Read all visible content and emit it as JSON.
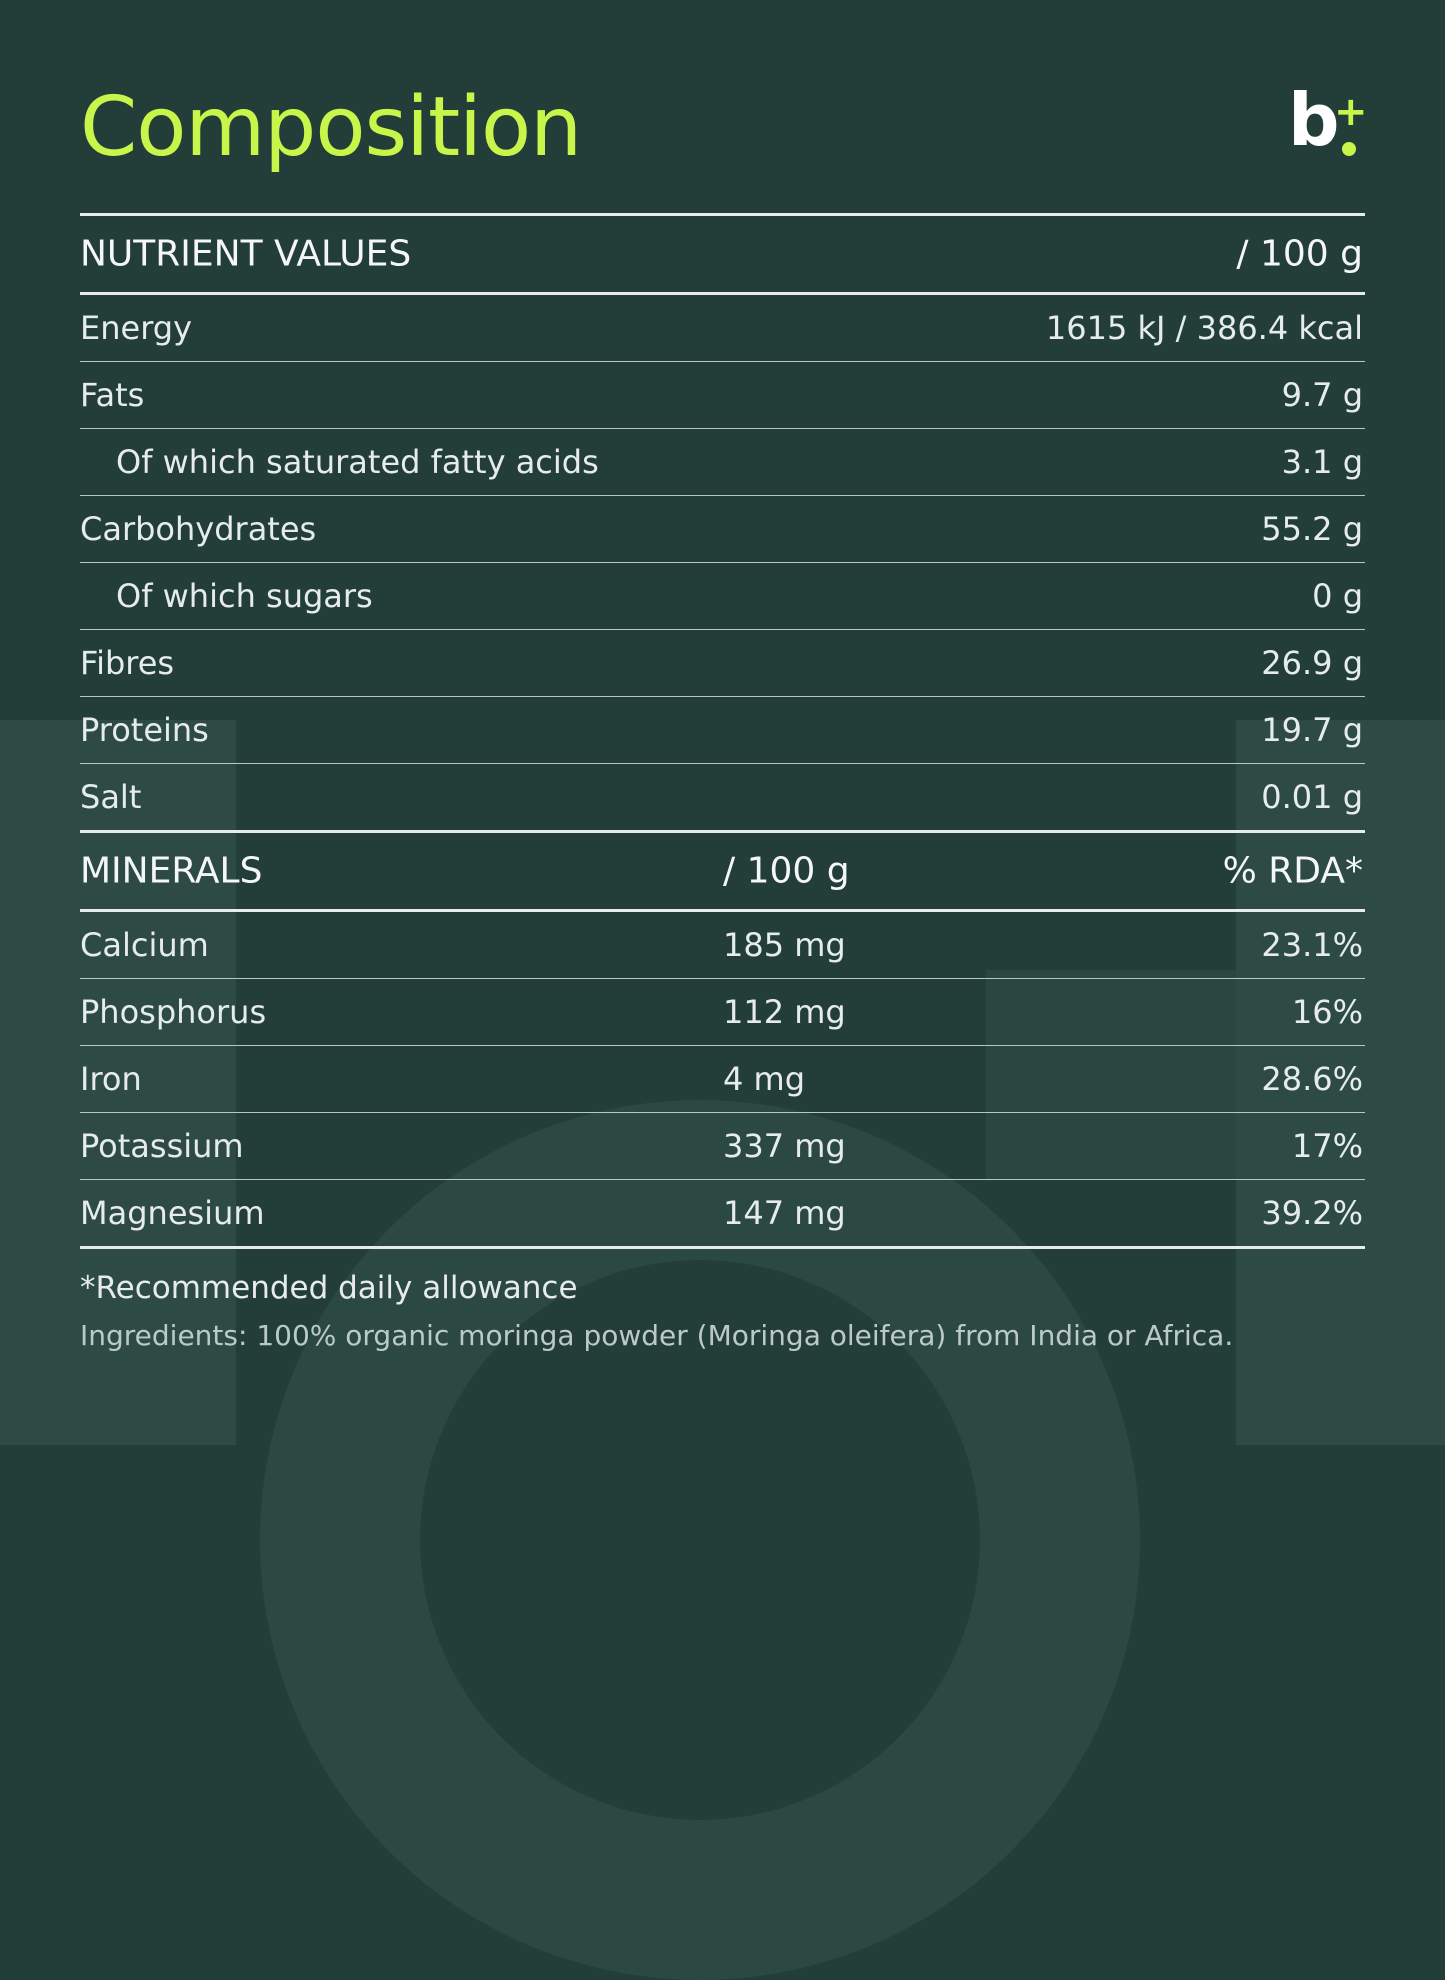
{
  "title": "Composition",
  "logo": {
    "letter": "b",
    "plus": "+"
  },
  "nutrients": {
    "header": "NUTRIENT VALUES",
    "per": "/ 100 g",
    "rows": [
      {
        "label": "Energy",
        "value": "1615 kJ / 386.4 kcal"
      },
      {
        "label": "Fats",
        "value": "9.7 g"
      },
      {
        "label": "Of which saturated fatty acids",
        "value": "3.1 g"
      },
      {
        "label": "Carbohydrates",
        "value": "55.2 g"
      },
      {
        "label": "Of which sugars",
        "value": "0 g"
      },
      {
        "label": "Fibres",
        "value": "26.9 g"
      },
      {
        "label": "Proteins",
        "value": "19.7 g"
      },
      {
        "label": "Salt",
        "value": "0.01 g"
      }
    ]
  },
  "minerals": {
    "header": "MINERALS",
    "per": "/ 100 g",
    "rda": "% RDA*",
    "rows": [
      {
        "label": "Calcium",
        "amount": "185 mg",
        "rda": "23.1%"
      },
      {
        "label": "Phosphorus",
        "amount": "112 mg",
        "rda": "16%"
      },
      {
        "label": "Iron",
        "amount": "4 mg",
        "rda": "28.6%"
      },
      {
        "label": "Potassium",
        "amount": "337 mg",
        "rda": "17%"
      },
      {
        "label": "Magnesium",
        "amount": "147 mg",
        "rda": "39.2%"
      }
    ]
  },
  "footnote": "*Recommended daily allowance",
  "ingredients": "Ingredients: 100% organic moringa powder (Moringa oleifera) from India or Africa.",
  "colors": {
    "background": "#233e39",
    "accent": "#c8f54a",
    "text": "#e6ece9"
  }
}
